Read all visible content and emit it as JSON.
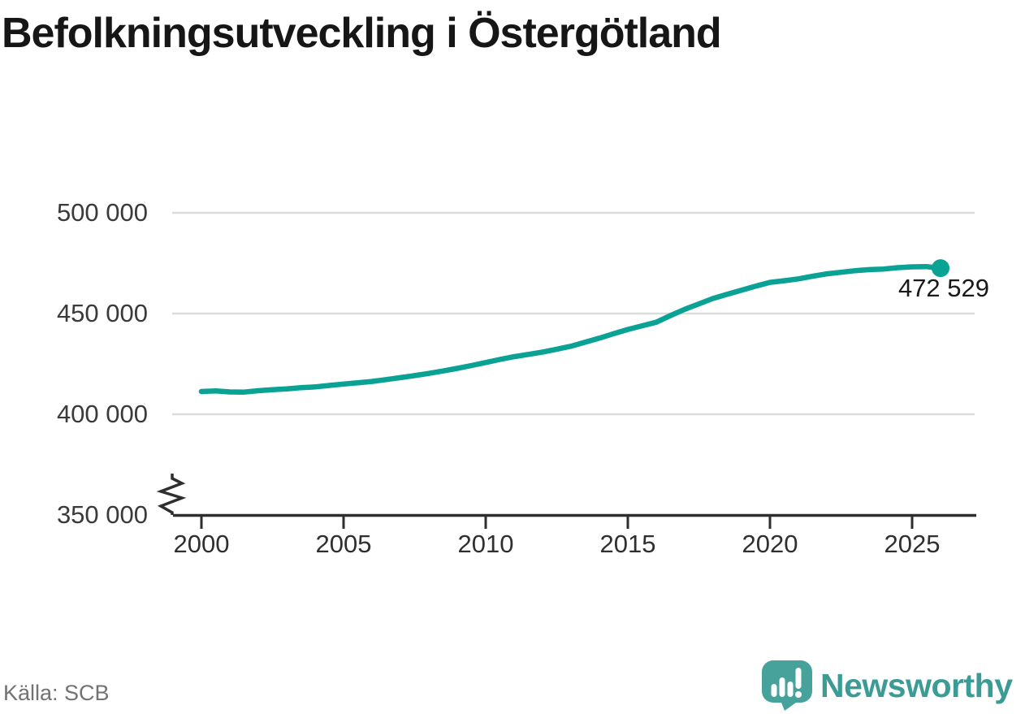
{
  "title": "Befolkningsutveckling i Östergötland",
  "source": "Källa: SCB",
  "branding": {
    "name": "Newsworthy"
  },
  "colors": {
    "line": "#0aa294",
    "marker": "#0aa294",
    "grid": "#dcdcdc",
    "axis": "#2e2e2e",
    "title_text": "#161616",
    "tick_label": "#3a3a3a",
    "source_text": "#737373",
    "brand": "#3b9b95",
    "logo_bubble": "#47a29b"
  },
  "chart_data": {
    "type": "line",
    "title": "Befolkningsutveckling i Östergötland",
    "xlabel": "",
    "ylabel": "",
    "grid": "horizontal",
    "axis_break": true,
    "legend": "none",
    "xlim": [
      2000,
      2027.3
    ],
    "ylim": [
      350000,
      505000
    ],
    "xticks": [
      {
        "year": 2000,
        "label": "2000"
      },
      {
        "year": 2005,
        "label": "2005"
      },
      {
        "year": 2010,
        "label": "2010"
      },
      {
        "year": 2015,
        "label": "2015"
      },
      {
        "year": 2020,
        "label": "2020"
      },
      {
        "year": 2025,
        "label": "2025"
      }
    ],
    "yticks": [
      {
        "value": 500000,
        "label": "500 000"
      },
      {
        "value": 450000,
        "label": "450 000"
      },
      {
        "value": 400000,
        "label": "400 000"
      },
      {
        "value": 350000,
        "label": "350 000"
      }
    ],
    "series": [
      {
        "name": "Befolkning i Östergötland",
        "x": [
          2000,
          2000.5,
          2001,
          2001.5,
          2002,
          2002.5,
          2003,
          2003.5,
          2004,
          2004.5,
          2005,
          2005.5,
          2006,
          2006.5,
          2007,
          2007.5,
          2008,
          2008.5,
          2009,
          2009.5,
          2010,
          2010.5,
          2011,
          2011.5,
          2012,
          2012.5,
          2013,
          2013.5,
          2014,
          2014.5,
          2015,
          2015.5,
          2016,
          2016.5,
          2017,
          2017.5,
          2018,
          2018.5,
          2019,
          2019.5,
          2020,
          2020.5,
          2021,
          2021.5,
          2022,
          2022.5,
          2023,
          2023.5,
          2024,
          2024.5,
          2025,
          2025.5,
          2026
        ],
        "values": [
          411300,
          411600,
          411100,
          411000,
          411700,
          412200,
          412600,
          413200,
          413600,
          414300,
          415000,
          415600,
          416300,
          417200,
          418200,
          419200,
          420300,
          421500,
          422800,
          424200,
          425700,
          427200,
          428600,
          429700,
          430900,
          432300,
          433800,
          435800,
          437800,
          440000,
          442100,
          443900,
          445700,
          449000,
          452100,
          454800,
          457500,
          459600,
          461600,
          463600,
          465500,
          466300,
          467200,
          468500,
          469700,
          470500,
          471300,
          471800,
          472100,
          472800,
          473200,
          473300,
          472529
        ]
      }
    ],
    "last_point": {
      "x": 2026,
      "value": 472529,
      "label": "472 529"
    }
  }
}
